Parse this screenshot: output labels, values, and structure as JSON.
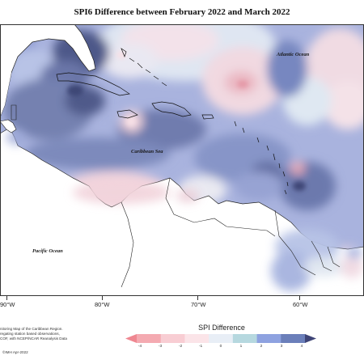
{
  "title": "SPI6 Difference between February 2022 and March 2022",
  "labels": {
    "atlantic": "Atlantic Ocean",
    "caribbean": "Caribbean Sea",
    "pacific": "Pacific Ocean"
  },
  "longitude_ticks": [
    "90°W",
    "80°W",
    "70°W",
    "60°W"
  ],
  "legend": {
    "title": "SPI Difference",
    "ticks": [
      "-4",
      "-3",
      "-2",
      "-1",
      "0",
      "1",
      "2",
      "3",
      "4"
    ],
    "colors": [
      "#ef8791",
      "#f4aab1",
      "#f8cdd3",
      "#fbe4e8",
      "#e8eef6",
      "#b6d8df",
      "#8ea2e0",
      "#6b7fba",
      "#3f4577"
    ]
  },
  "footer": {
    "line1": "nitoring Map of the Caribbean Region.",
    "line2": "regating station based observations,",
    "line3": "COF, with NCEP/NCAR Reanalysis Data",
    "copyright": "©IMH Apr-2022"
  }
}
